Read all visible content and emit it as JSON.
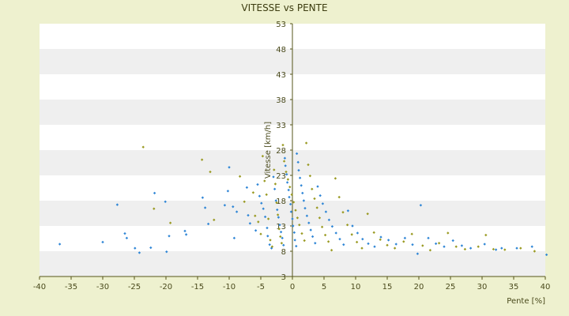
{
  "chart_data": {
    "type": "scatter",
    "title": "VITESSE vs PENTE",
    "xlabel": "Pente [%]",
    "ylabel": "Vitesse [km/h]",
    "xlim": [
      -40,
      40
    ],
    "ylim": [
      3,
      53
    ],
    "x_ticks": [
      -40,
      -35,
      -30,
      -25,
      -20,
      -15,
      -10,
      -5,
      0,
      5,
      10,
      15,
      20,
      25,
      30,
      35,
      40
    ],
    "y_ticks": [
      3,
      8,
      13,
      18,
      23,
      28,
      33,
      38,
      43,
      48,
      53
    ],
    "x_tick_labels": [
      "-40",
      "-35",
      "-30",
      "-25",
      "-20",
      "-15",
      "-10",
      "-5",
      "0",
      "5",
      "10",
      "15",
      "20",
      "25",
      "30",
      "35",
      "40"
    ],
    "y_tick_labels": [
      "3",
      "8",
      "13",
      "18",
      "23",
      "28",
      "33",
      "38",
      "43",
      "48",
      "53"
    ],
    "grid": "horizontal bands",
    "legend": "none",
    "colors": {
      "band_a": "#ffffff",
      "band_b": "#efefef",
      "frame_bg": "#eef1cf",
      "axis": "#55551a",
      "series_a": "#2f86d6",
      "series_b": "#9a9a22"
    },
    "series": [
      {
        "color": "#2f86d6",
        "points": [
          [
            -36.8,
            9.4
          ],
          [
            -30.0,
            9.8
          ],
          [
            -27.7,
            17.2
          ],
          [
            -26.5,
            11.5
          ],
          [
            -26.2,
            10.6
          ],
          [
            -24.9,
            8.6
          ],
          [
            -24.2,
            7.7
          ],
          [
            -22.4,
            8.7
          ],
          [
            -21.8,
            19.5
          ],
          [
            -20.1,
            17.8
          ],
          [
            -19.9,
            7.9
          ],
          [
            -19.5,
            11.0
          ],
          [
            -17.0,
            12.0
          ],
          [
            -16.8,
            11.3
          ],
          [
            -14.2,
            18.6
          ],
          [
            -13.8,
            16.6
          ],
          [
            -13.3,
            13.4
          ],
          [
            -10.7,
            17.1
          ],
          [
            -10.2,
            19.9
          ],
          [
            -10.0,
            24.6
          ],
          [
            -9.4,
            16.8
          ],
          [
            -9.2,
            10.6
          ],
          [
            -8.8,
            15.8
          ],
          [
            -7.2,
            20.6
          ],
          [
            -7.0,
            15.1
          ],
          [
            -6.7,
            13.5
          ],
          [
            -5.8,
            12.1
          ],
          [
            -5.5,
            21.2
          ],
          [
            -5.2,
            18.9
          ],
          [
            -4.9,
            17.5
          ],
          [
            -4.6,
            16.4
          ],
          [
            -4.3,
            14.8
          ],
          [
            -4.0,
            12.6
          ],
          [
            -3.9,
            11.0
          ],
          [
            -3.6,
            9.3
          ],
          [
            -3.3,
            8.6
          ],
          [
            -3.0,
            22.7
          ],
          [
            -2.8,
            20.3
          ],
          [
            -2.6,
            18.0
          ],
          [
            -2.4,
            16.2
          ],
          [
            -2.2,
            14.7
          ],
          [
            -2.0,
            13.2
          ],
          [
            -1.8,
            11.8
          ],
          [
            -1.6,
            10.6
          ],
          [
            -1.4,
            9.2
          ],
          [
            -1.2,
            26.4
          ],
          [
            -1.1,
            24.9
          ],
          [
            -0.9,
            23.2
          ],
          [
            -0.8,
            21.6
          ],
          [
            -0.6,
            20.1
          ],
          [
            -0.5,
            18.7
          ],
          [
            -0.3,
            17.3
          ],
          [
            -0.2,
            15.8
          ],
          [
            0.0,
            14.4
          ],
          [
            0.1,
            13.0
          ],
          [
            0.3,
            11.7
          ],
          [
            0.4,
            10.2
          ],
          [
            0.6,
            9.0
          ],
          [
            0.7,
            27.3
          ],
          [
            0.9,
            25.6
          ],
          [
            1.0,
            24.0
          ],
          [
            1.2,
            22.5
          ],
          [
            1.4,
            21.0
          ],
          [
            1.6,
            19.5
          ],
          [
            1.8,
            18.0
          ],
          [
            2.0,
            16.5
          ],
          [
            2.3,
            15.0
          ],
          [
            2.6,
            13.6
          ],
          [
            2.9,
            12.2
          ],
          [
            3.2,
            10.9
          ],
          [
            3.6,
            9.6
          ],
          [
            4.0,
            20.8
          ],
          [
            4.4,
            19.0
          ],
          [
            4.8,
            17.4
          ],
          [
            5.3,
            15.8
          ],
          [
            5.8,
            14.2
          ],
          [
            6.3,
            12.9
          ],
          [
            6.9,
            11.6
          ],
          [
            7.5,
            10.4
          ],
          [
            8.1,
            9.3
          ],
          [
            8.8,
            16.0
          ],
          [
            9.5,
            13.0
          ],
          [
            10.3,
            11.6
          ],
          [
            11.1,
            10.4
          ],
          [
            12.0,
            9.5
          ],
          [
            13.0,
            8.9
          ],
          [
            14.0,
            10.8
          ],
          [
            15.2,
            10.2
          ],
          [
            16.4,
            9.4
          ],
          [
            17.8,
            10.6
          ],
          [
            19.0,
            9.3
          ],
          [
            19.8,
            7.5
          ],
          [
            20.3,
            17.1
          ],
          [
            21.5,
            10.6
          ],
          [
            22.7,
            9.5
          ],
          [
            24.0,
            8.9
          ],
          [
            25.4,
            10.1
          ],
          [
            26.8,
            9.1
          ],
          [
            28.2,
            8.6
          ],
          [
            30.4,
            9.4
          ],
          [
            32.2,
            8.3
          ],
          [
            33.1,
            8.6
          ],
          [
            35.5,
            8.6
          ],
          [
            37.9,
            8.9
          ],
          [
            40.2,
            7.3
          ]
        ]
      },
      {
        "color": "#9a9a22",
        "points": [
          [
            -23.6,
            28.6
          ],
          [
            -21.9,
            16.4
          ],
          [
            -19.3,
            13.6
          ],
          [
            -14.3,
            26.1
          ],
          [
            -13.0,
            23.7
          ],
          [
            -12.4,
            14.2
          ],
          [
            -8.3,
            22.8
          ],
          [
            -7.6,
            17.8
          ],
          [
            -6.2,
            19.6
          ],
          [
            -5.9,
            15.0
          ],
          [
            -5.4,
            13.8
          ],
          [
            -5.0,
            11.4
          ],
          [
            -4.7,
            26.8
          ],
          [
            -4.4,
            21.9
          ],
          [
            -4.1,
            19.2
          ],
          [
            -3.8,
            14.4
          ],
          [
            -3.5,
            10.2
          ],
          [
            -3.2,
            8.9
          ],
          [
            -2.9,
            24.1
          ],
          [
            -2.7,
            21.3
          ],
          [
            -2.5,
            17.6
          ],
          [
            -2.3,
            15.2
          ],
          [
            -2.1,
            12.4
          ],
          [
            -1.9,
            10.9
          ],
          [
            -1.7,
            9.6
          ],
          [
            -1.5,
            29.0
          ],
          [
            -1.3,
            25.8
          ],
          [
            -1.0,
            23.7
          ],
          [
            -0.7,
            22.2
          ],
          [
            -0.4,
            20.7
          ],
          [
            -0.1,
            19.2
          ],
          [
            0.2,
            17.7
          ],
          [
            0.5,
            16.1
          ],
          [
            0.8,
            14.6
          ],
          [
            1.1,
            13.2
          ],
          [
            1.5,
            11.5
          ],
          [
            1.9,
            10.1
          ],
          [
            2.2,
            29.4
          ],
          [
            2.5,
            25.1
          ],
          [
            2.8,
            22.9
          ],
          [
            3.1,
            20.3
          ],
          [
            3.5,
            18.4
          ],
          [
            3.9,
            16.6
          ],
          [
            4.3,
            14.6
          ],
          [
            4.7,
            12.8
          ],
          [
            5.2,
            11.2
          ],
          [
            5.7,
            9.9
          ],
          [
            6.2,
            8.2
          ],
          [
            6.8,
            22.4
          ],
          [
            7.4,
            18.7
          ],
          [
            8.0,
            15.7
          ],
          [
            8.7,
            13.2
          ],
          [
            9.4,
            11.3
          ],
          [
            10.2,
            9.8
          ],
          [
            11.0,
            8.6
          ],
          [
            11.9,
            15.4
          ],
          [
            12.9,
            11.7
          ],
          [
            13.9,
            10.3
          ],
          [
            15.0,
            9.2
          ],
          [
            16.2,
            8.6
          ],
          [
            17.6,
            9.9
          ],
          [
            18.9,
            11.4
          ],
          [
            20.6,
            9.1
          ],
          [
            21.8,
            8.2
          ],
          [
            23.2,
            9.6
          ],
          [
            24.6,
            11.6
          ],
          [
            25.9,
            8.9
          ],
          [
            27.3,
            8.4
          ],
          [
            29.4,
            8.9
          ],
          [
            30.6,
            11.2
          ],
          [
            31.8,
            8.4
          ],
          [
            33.6,
            8.3
          ],
          [
            36.1,
            8.6
          ],
          [
            38.3,
            8.0
          ]
        ]
      }
    ]
  }
}
